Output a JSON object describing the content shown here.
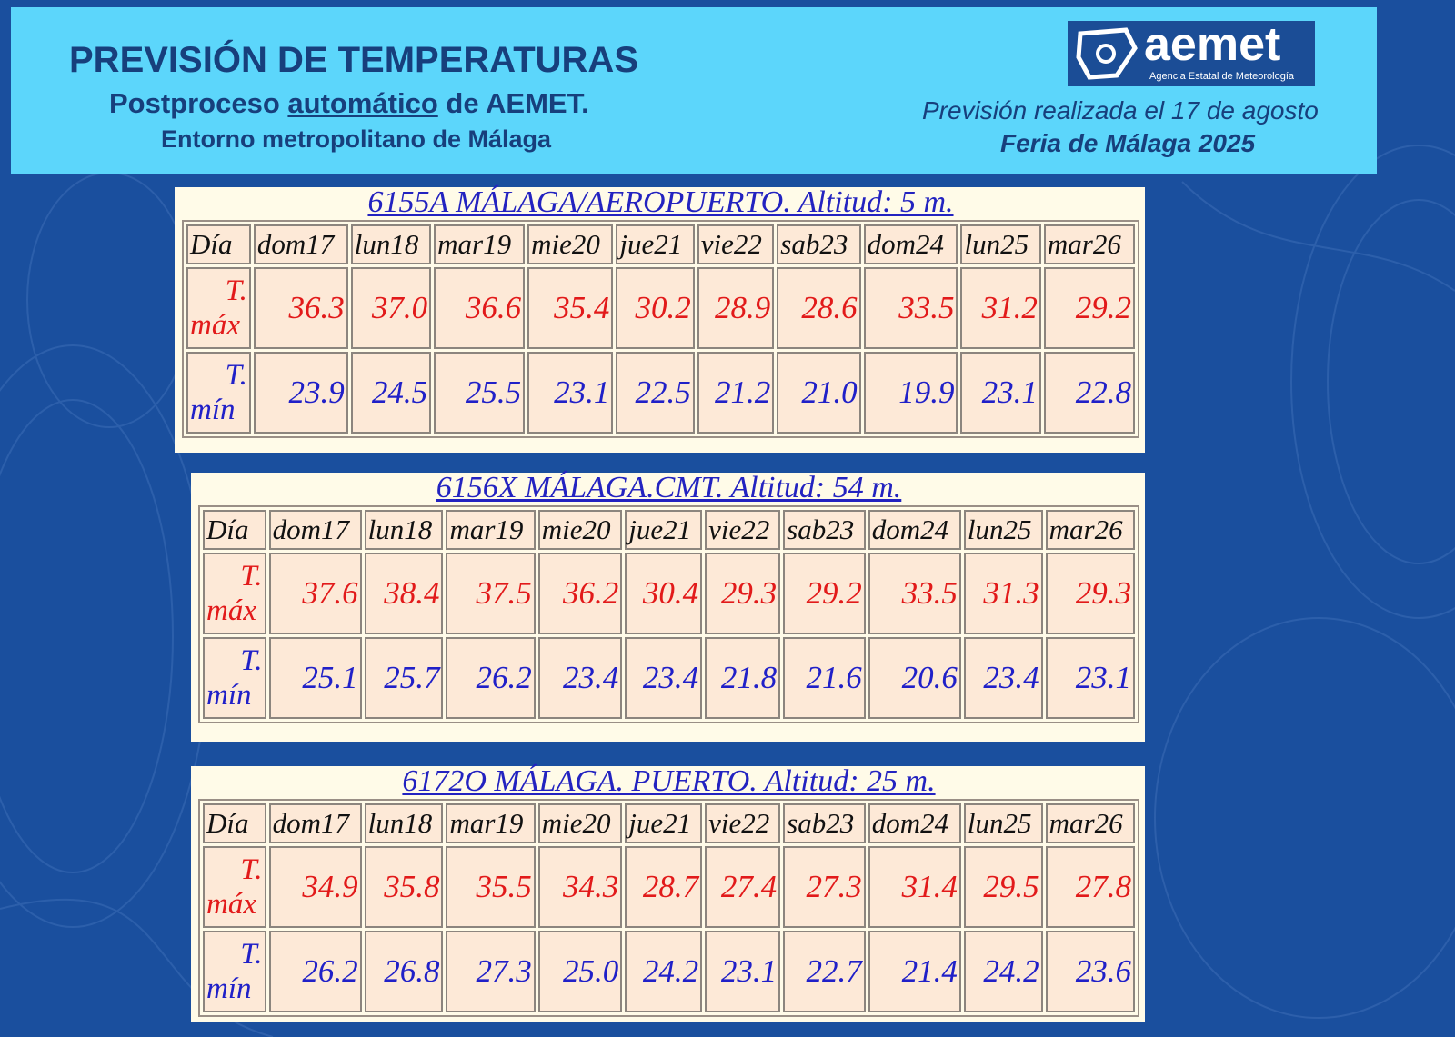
{
  "header": {
    "title": "PREVISIÓN DE TEMPERATURAS",
    "subtitle": [
      "Postproceso",
      "automático",
      "de AEMET."
    ],
    "area": "Entorno metropolitano de Málaga",
    "logo": {
      "name": "aemet",
      "tagline": "Agencia Estatal de Meteorología"
    },
    "issued": "Previsión realizada el 17 de agosto",
    "event": "Feria de Málaga 2025"
  },
  "stations": [
    {
      "title": "6155A MÁLAGA/AEROPUERTO. Altitud: 5 m.",
      "header": [
        "Día",
        "dom17",
        "lun18",
        "mar19",
        "mie20",
        "jue21",
        "vie22",
        "sab23",
        "dom24",
        "lun25",
        "mar26"
      ],
      "rows": [
        {
          "label": [
            "T.",
            "máx"
          ],
          "values": [
            "36.3",
            "37.0",
            "36.6",
            "35.4",
            "30.2",
            "28.9",
            "28.6",
            "33.5",
            "31.2",
            "29.2"
          ]
        },
        {
          "label": [
            "T.",
            "mín"
          ],
          "values": [
            "23.9",
            "24.5",
            "25.5",
            "23.1",
            "22.5",
            "21.2",
            "21.0",
            "19.9",
            "23.1",
            "22.8"
          ]
        }
      ]
    },
    {
      "title": "6156X MÁLAGA.CMT. Altitud: 54 m.",
      "header": [
        "Día",
        "dom17",
        "lun18",
        "mar19",
        "mie20",
        "jue21",
        "vie22",
        "sab23",
        "dom24",
        "lun25",
        "mar26"
      ],
      "rows": [
        {
          "label": [
            "T.",
            "máx"
          ],
          "values": [
            "37.6",
            "38.4",
            "37.5",
            "36.2",
            "30.4",
            "29.3",
            "29.2",
            "33.5",
            "31.3",
            "29.3"
          ]
        },
        {
          "label": [
            "T.",
            "mín"
          ],
          "values": [
            "25.1",
            "25.7",
            "26.2",
            "23.4",
            "23.4",
            "21.8",
            "21.6",
            "20.6",
            "23.4",
            "23.1"
          ]
        }
      ]
    },
    {
      "title": "6172O MÁLAGA. PUERTO. Altitud: 25 m.",
      "header": [
        "Día",
        "dom17",
        "lun18",
        "mar19",
        "mie20",
        "jue21",
        "vie22",
        "sab23",
        "dom24",
        "lun25",
        "mar26"
      ],
      "rows": [
        {
          "label": [
            "T.",
            "máx"
          ],
          "values": [
            "34.9",
            "35.8",
            "35.5",
            "34.3",
            "28.7",
            "27.4",
            "27.3",
            "31.4",
            "29.5",
            "27.8"
          ]
        },
        {
          "label": [
            "T.",
            "mín"
          ],
          "values": [
            "26.2",
            "26.8",
            "27.3",
            "25.0",
            "24.2",
            "23.1",
            "22.7",
            "21.4",
            "24.2",
            "23.6"
          ]
        }
      ]
    }
  ]
}
